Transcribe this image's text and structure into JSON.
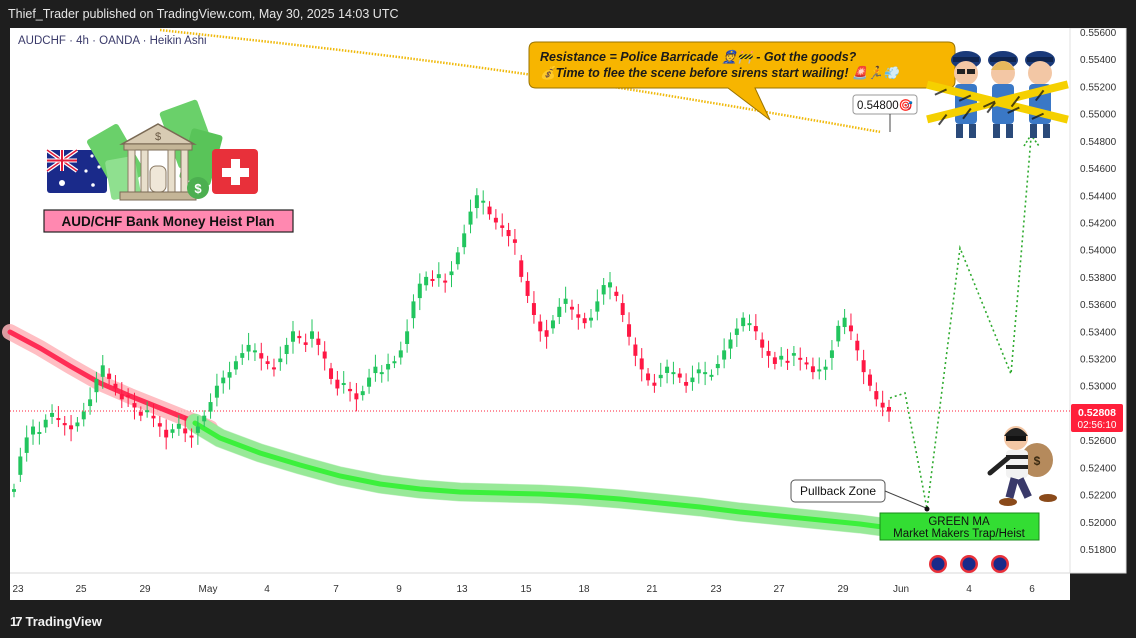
{
  "header": {
    "publish_line": "Thief_Trader published on TradingView.com, May 30, 2025 14:03 UTC"
  },
  "footer": {
    "brand": "TradingView"
  },
  "colors": {
    "bull": "#22c55e",
    "bear": "#ff1744",
    "ma_green": "#3cf03c",
    "ma_red": "#ff2d55",
    "resistance_line": "#f0b90b",
    "callout_bg": "#f7b500",
    "target_dotted": "#2eaa2e",
    "green_label_bg": "#33dd33",
    "price_tag": "#ff1f3a"
  },
  "chart_data": {
    "type": "candlestick",
    "symbol": "AUDCHF · 4h · OANDA · Heikin Ashi",
    "title": "AUD/CHF Bank Money Heist Plan",
    "yaxis": {
      "ticks": [
        "0.55600",
        "0.55400",
        "0.55200",
        "0.55000",
        "0.54800",
        "0.54600",
        "0.54400",
        "0.54200",
        "0.54000",
        "0.53800",
        "0.53600",
        "0.53400",
        "0.53200",
        "0.53000",
        "0.52800",
        "0.52600",
        "0.52400",
        "0.52200",
        "0.52000",
        "0.51800"
      ],
      "ylim": [
        0.517,
        0.5566
      ]
    },
    "xaxis": {
      "ticks": [
        "23",
        "25",
        "29",
        "May",
        "4",
        "7",
        "9",
        "13",
        "15",
        "18",
        "21",
        "23",
        "27",
        "29",
        "Jun",
        "4",
        "6"
      ]
    },
    "current_price": {
      "value": "0.52808",
      "countdown": "02:56:10"
    },
    "candles_hourly_4h_closes": [
      0.5224,
      0.5248,
      0.5262,
      0.527,
      0.5266,
      0.5275,
      0.528,
      0.5276,
      0.5271,
      0.5268,
      0.5273,
      0.5281,
      0.529,
      0.5305,
      0.5315,
      0.5305,
      0.5298,
      0.529,
      0.5292,
      0.5284,
      0.5278,
      0.5282,
      0.5276,
      0.527,
      0.5262,
      0.5268,
      0.5272,
      0.5265,
      0.5262,
      0.527,
      0.5278,
      0.5288,
      0.53,
      0.5306,
      0.531,
      0.5318,
      0.5324,
      0.533,
      0.5326,
      0.532,
      0.5316,
      0.5312,
      0.532,
      0.533,
      0.534,
      0.5335,
      0.533,
      0.534,
      0.533,
      0.532,
      0.5305,
      0.5298,
      0.5302,
      0.5296,
      0.529,
      0.5296,
      0.5306,
      0.5314,
      0.531,
      0.5316,
      0.5318,
      0.5326,
      0.534,
      0.5362,
      0.5375,
      0.538,
      0.5378,
      0.5382,
      0.5376,
      0.5384,
      0.5398,
      0.5412,
      0.5428,
      0.544,
      0.5436,
      0.5426,
      0.542,
      0.5416,
      0.541,
      0.5405,
      0.538,
      0.5366,
      0.5352,
      0.534,
      0.5336,
      0.5348,
      0.5358,
      0.5364,
      0.5356,
      0.535,
      0.5346,
      0.535,
      0.5362,
      0.5374,
      0.5376,
      0.5366,
      0.5352,
      0.5336,
      0.5322,
      0.5312,
      0.5304,
      0.53,
      0.5308,
      0.5314,
      0.531,
      0.5306,
      0.53,
      0.5306,
      0.5312,
      0.531,
      0.5308,
      0.5316,
      0.5326,
      0.5334,
      0.5342,
      0.535,
      0.5346,
      0.534,
      0.5328,
      0.5322,
      0.5316,
      0.5322,
      0.5318,
      0.5324,
      0.532,
      0.5316,
      0.531,
      0.5312,
      0.5314,
      0.5326,
      0.5344,
      0.535,
      0.534,
      0.5326,
      0.531,
      0.53,
      0.529,
      0.5284,
      0.5281
    ],
    "series": [
      {
        "name": "Resistance",
        "label": "0.54800"
      },
      {
        "name": "GREEN MA",
        "label": "Market Makers Trap/Heist"
      }
    ],
    "annotations": {
      "callout_line1": "Resistance = Police Barricade 👮🚧 - Got the goods?",
      "callout_line2": "💰Time to flee the scene before sirens start wailing! 🚨🏃💨",
      "target_label": "0.54800🎯",
      "pullback_label": "Pullback Zone",
      "green_ma_title": "GREEN MA",
      "green_ma_sub": "Market Makers Trap/Heist",
      "plan_path": [
        {
          "x_label": "29",
          "y": 0.5282
        },
        {
          "x_label": "Jun",
          "y": 0.5215
        },
        {
          "x_label": "Jun",
          "y": 0.54
        },
        {
          "x_label": "4",
          "y": 0.5308
        },
        {
          "x_label": "6",
          "y": 0.5482
        }
      ]
    }
  }
}
